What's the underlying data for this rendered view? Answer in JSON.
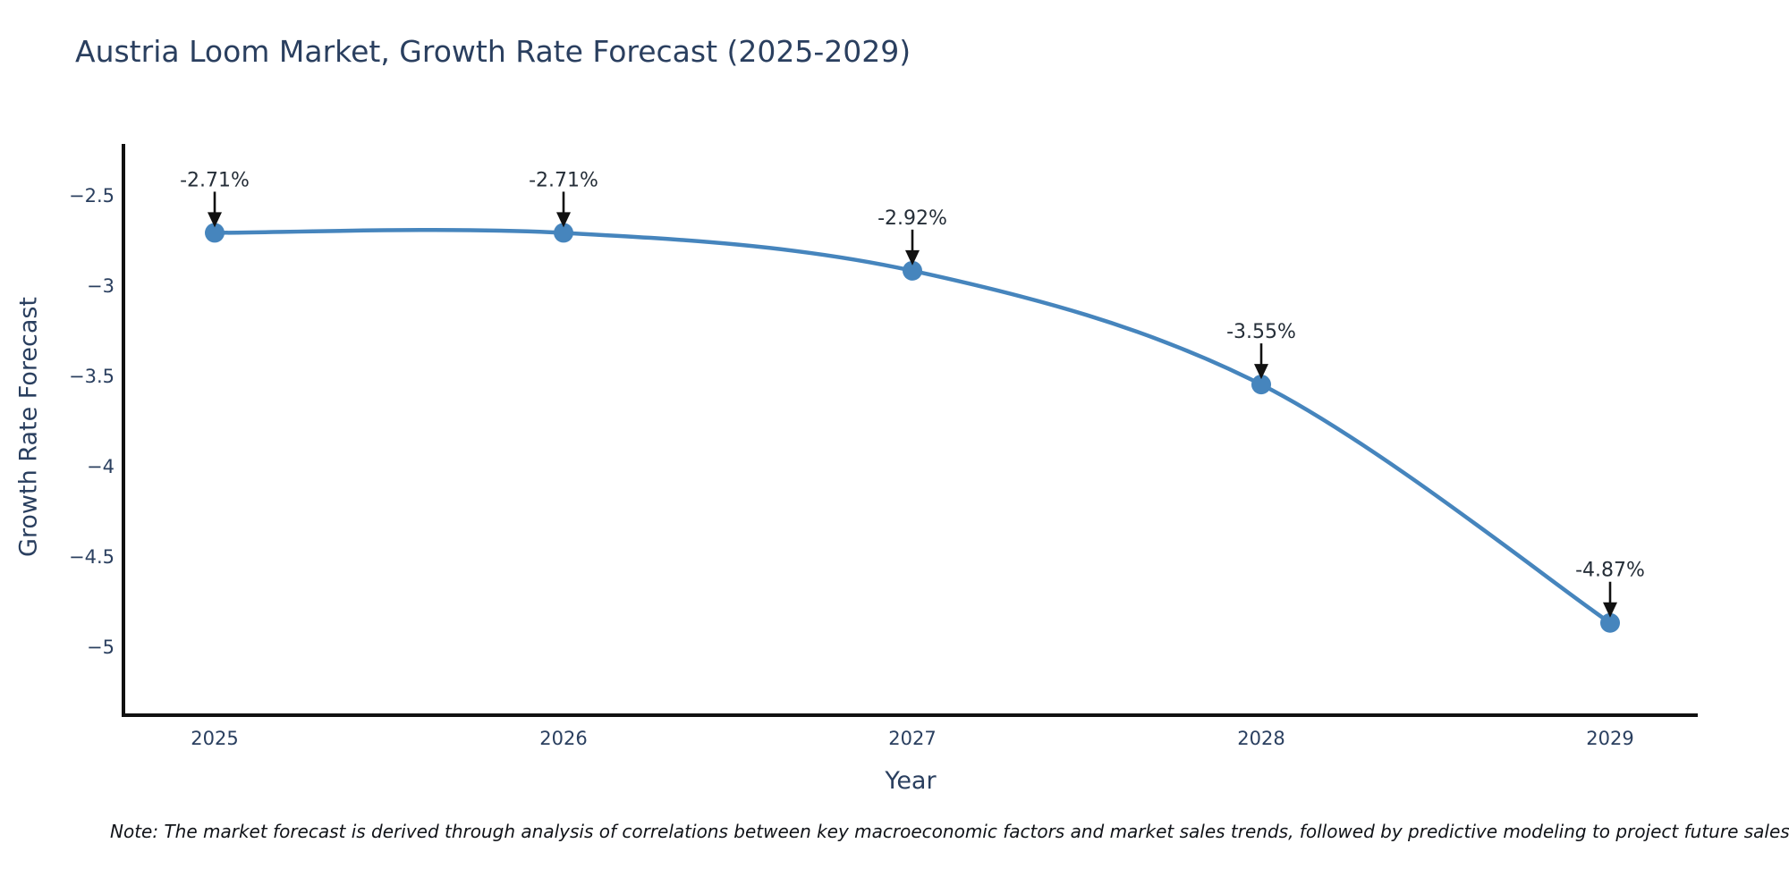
{
  "chart_data": {
    "type": "line",
    "title": "Austria Loom Market, Growth Rate Forecast (2025-2029)",
    "xlabel": "Year",
    "ylabel": "Growth Rate Forecast",
    "x": [
      2025,
      2026,
      2027,
      2028,
      2029
    ],
    "y": [
      -2.71,
      -2.71,
      -2.92,
      -3.55,
      -4.87
    ],
    "point_labels": [
      "-2.71%",
      "-2.71%",
      "-2.92%",
      "-3.55%",
      "-4.87%"
    ],
    "xtick_labels": [
      "2025",
      "2026",
      "2027",
      "2028",
      "2029"
    ],
    "ytick_values": [
      -2.5,
      -3,
      -3.5,
      -4,
      -4.5,
      -5
    ],
    "ytick_labels": [
      "−2.5",
      "−3",
      "−3.5",
      "−4",
      "−4.5",
      "−5"
    ],
    "ylim": [
      -5.38,
      -2.22
    ],
    "line_shape": "spline",
    "grid": false,
    "legend": "none",
    "annotation_style": "arrow-down-to-point",
    "colors": {
      "line": "#4685bd",
      "marker": "#4685bd",
      "axis": "#111111",
      "arrow": "#111111",
      "title_text": "#2a3f5f",
      "tick_text": "#2a3f5f",
      "annotation_text": "#252e38",
      "background": "#ffffff"
    },
    "note": "Note: The market forecast is derived through analysis of correlations between key macroeconomic factors and market sales trends, followed by predictive modeling to project future sales."
  }
}
